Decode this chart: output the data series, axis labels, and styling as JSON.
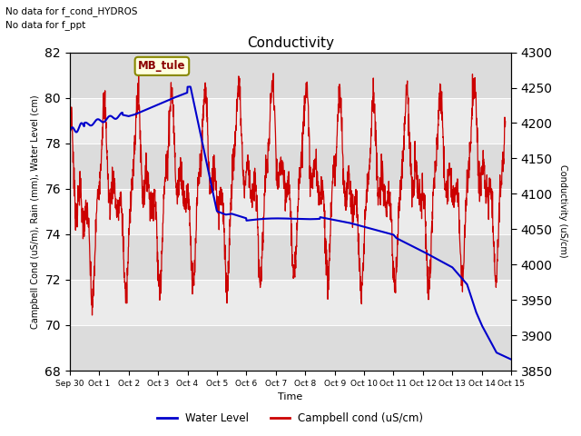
{
  "title": "Conductivity",
  "xlabel": "Time",
  "ylabel_left": "Campbell Cond (uS/m), Rain (mm), Water Level (cm)",
  "ylabel_right": "Conductivity (uS/cm)",
  "ylim_left": [
    68,
    82
  ],
  "ylim_right": [
    3850,
    4300
  ],
  "yticks_left": [
    68,
    70,
    72,
    74,
    76,
    78,
    80,
    82
  ],
  "yticks_right": [
    3850,
    3900,
    3950,
    4000,
    4050,
    4100,
    4150,
    4200,
    4250,
    4300
  ],
  "text_no_data_1": "No data for f_cond_HYDROS",
  "text_no_data_2": "No data for f_ppt",
  "annotation_box": "MB_tule",
  "fig_facecolor": "#ffffff",
  "plot_bg_color_light": "#f0f0f0",
  "plot_bg_color_dark": "#e0e0e0",
  "water_level_color": "#0000cc",
  "campbell_cond_color": "#cc0000",
  "x_tick_labels": [
    "Sep 30",
    "Oct 1",
    "Oct 2",
    "Oct 3",
    "Oct 4",
    "Oct 5",
    "Oct 6",
    "Oct 7",
    "Oct 8",
    "Oct 9",
    "Oct 10",
    "Oct 11",
    "Oct 12",
    "Oct 13",
    "Oct 14",
    "Oct 15"
  ],
  "xlim": [
    0,
    15
  ],
  "right_axis_dotted": true
}
